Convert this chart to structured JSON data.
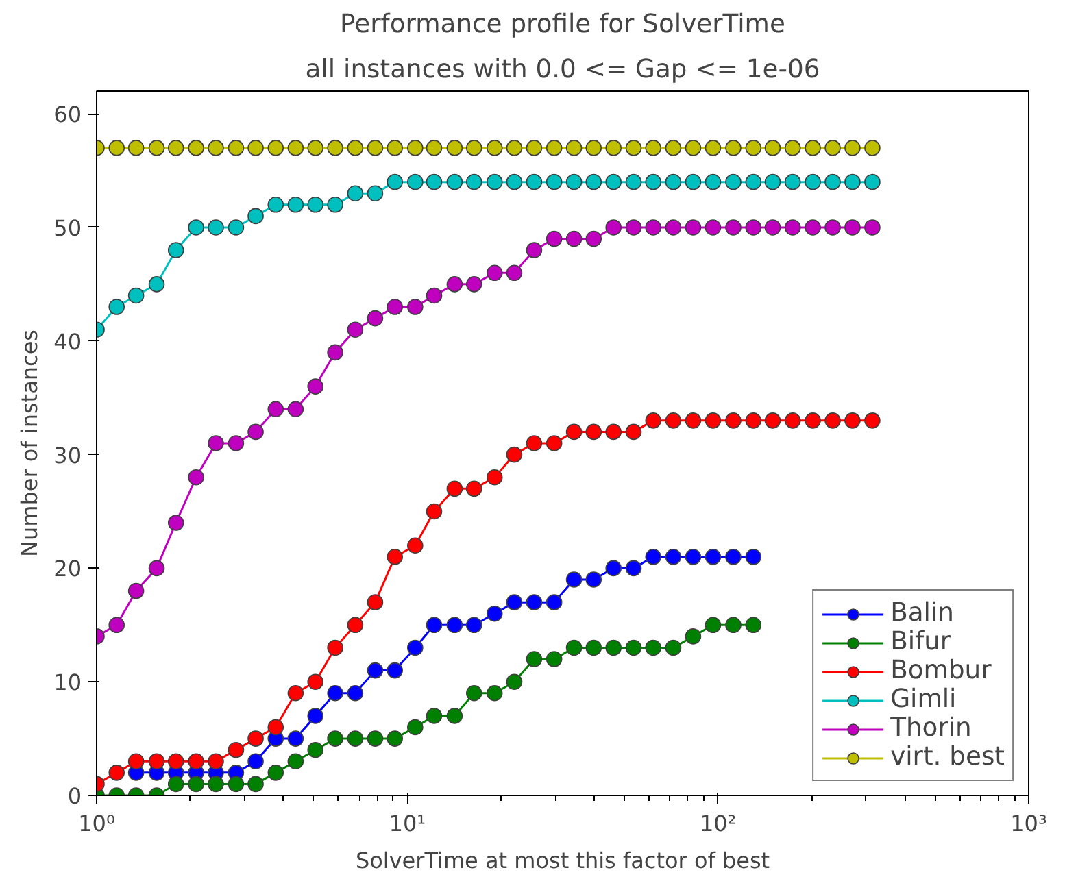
{
  "chart_data": {
    "type": "line",
    "title": "Performance profile for SolverTime",
    "subtitle": "all instances with 0.0 <= Gap <= 1e-06",
    "xlabel": "SolverTime at most this factor of best",
    "ylabel": "Number of instances",
    "log": "x",
    "grid": false,
    "legend": "bottom right",
    "marker": "circle",
    "line_style": "solid",
    "xlim": [
      1,
      1000
    ],
    "xticks": [
      {
        "value": 1,
        "label": "10⁰"
      },
      {
        "value": 10,
        "label": "10¹"
      },
      {
        "value": 100,
        "label": "10²"
      },
      {
        "value": 1000,
        "label": "10³"
      }
    ],
    "ylim": [
      0,
      62
    ],
    "yticks": [
      0,
      10,
      20,
      30,
      40,
      50,
      60
    ],
    "x": [
      1,
      1.16,
      1.34,
      1.56,
      1.8,
      2.09,
      2.42,
      2.81,
      3.25,
      3.77,
      4.37,
      5.06,
      5.86,
      6.8,
      7.88,
      9.12,
      10.6,
      12.2,
      14.2,
      16.4,
      19.1,
      22.1,
      25.6,
      29.7,
      34.4,
      39.8,
      46.1,
      53.5,
      61.9,
      71.8,
      83.2,
      96.4,
      112,
      130,
      150,
      174,
      202,
      234,
      271,
      314
    ],
    "series": [
      {
        "name": "Balin",
        "color": "#0000ff",
        "values": [
          null,
          null,
          2,
          2,
          2,
          2,
          2,
          2,
          3,
          5,
          5,
          7,
          9,
          9,
          11,
          11,
          13,
          15,
          15,
          15,
          16,
          17,
          17,
          17,
          19,
          19,
          20,
          20,
          21,
          21,
          21,
          21,
          21,
          21,
          null,
          null,
          null,
          null,
          null,
          null
        ]
      },
      {
        "name": "Bifur",
        "color": "#008000",
        "values": [
          0,
          0,
          0,
          0,
          1,
          1,
          1,
          1,
          1,
          2,
          3,
          4,
          5,
          5,
          5,
          5,
          6,
          7,
          7,
          9,
          9,
          10,
          12,
          12,
          13,
          13,
          13,
          13,
          13,
          13,
          14,
          15,
          15,
          15,
          null,
          null,
          null,
          null,
          null,
          null
        ]
      },
      {
        "name": "Bombur",
        "color": "#ff0000",
        "values": [
          1,
          2,
          3,
          3,
          3,
          3,
          3,
          4,
          5,
          6,
          9,
          10,
          13,
          15,
          17,
          21,
          22,
          25,
          27,
          27,
          28,
          30,
          31,
          31,
          32,
          32,
          32,
          32,
          33,
          33,
          33,
          33,
          33,
          33,
          33,
          33,
          33,
          33,
          33,
          33
        ]
      },
      {
        "name": "Gimli",
        "color": "#00bfbf",
        "values": [
          41,
          43,
          44,
          45,
          48,
          50,
          50,
          50,
          51,
          52,
          52,
          52,
          52,
          53,
          53,
          54,
          54,
          54,
          54,
          54,
          54,
          54,
          54,
          54,
          54,
          54,
          54,
          54,
          54,
          54,
          54,
          54,
          54,
          54,
          54,
          54,
          54,
          54,
          54,
          54
        ]
      },
      {
        "name": "Thorin",
        "color": "#bf00bf",
        "values": [
          14,
          15,
          18,
          20,
          24,
          28,
          31,
          31,
          32,
          34,
          34,
          36,
          39,
          41,
          42,
          43,
          43,
          44,
          45,
          45,
          46,
          46,
          48,
          49,
          49,
          49,
          50,
          50,
          50,
          50,
          50,
          50,
          50,
          50,
          50,
          50,
          50,
          50,
          50,
          50
        ]
      },
      {
        "name": "virt. best",
        "color": "#bfbf00",
        "values": [
          57,
          57,
          57,
          57,
          57,
          57,
          57,
          57,
          57,
          57,
          57,
          57,
          57,
          57,
          57,
          57,
          57,
          57,
          57,
          57,
          57,
          57,
          57,
          57,
          57,
          57,
          57,
          57,
          57,
          57,
          57,
          57,
          57,
          57,
          57,
          57,
          57,
          57,
          57,
          57
        ]
      }
    ]
  }
}
